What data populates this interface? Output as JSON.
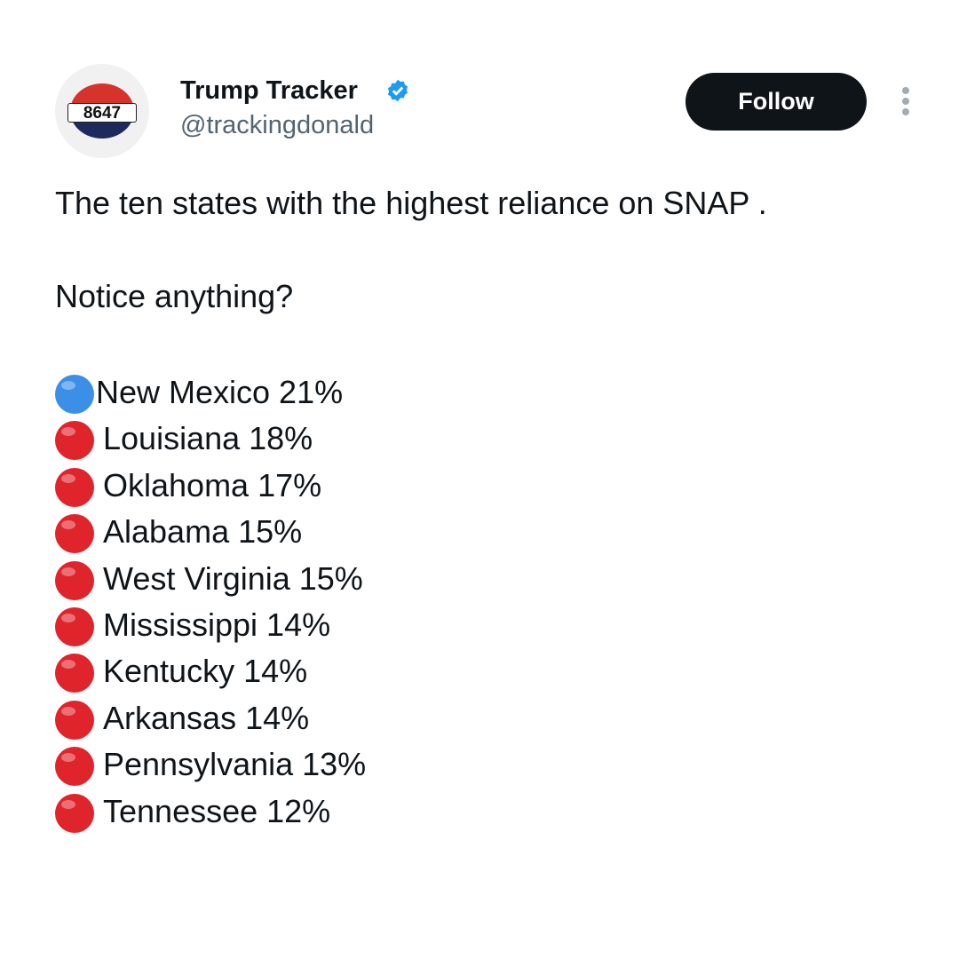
{
  "author": {
    "avatar_text": "8647",
    "name": "Trump Tracker",
    "handle": "@trackingdonald"
  },
  "follow_button": "Follow",
  "tweet": {
    "lines": [
      "The ten states with the highest reliance on SNAP .",
      "Notice anything?"
    ],
    "items": [
      {
        "marker_color": "#3b8fe6",
        "text": "New Mexico 21%"
      },
      {
        "marker_color": "#e0242b",
        "text": "Louisiana 18%"
      },
      {
        "marker_color": "#e0242b",
        "text": "Oklahoma 17%"
      },
      {
        "marker_color": "#e0242b",
        "text": "Alabama 15%"
      },
      {
        "marker_color": "#e0242b",
        "text": "West Virginia 15%"
      },
      {
        "marker_color": "#e0242b",
        "text": "Mississippi 14%"
      },
      {
        "marker_color": "#e0242b",
        "text": "Kentucky 14%"
      },
      {
        "marker_color": "#e0242b",
        "text": "Arkansas 14%"
      },
      {
        "marker_color": "#e0242b",
        "text": "Pennsylvania 13%"
      },
      {
        "marker_color": "#e0242b",
        "text": "Tennessee 12%"
      }
    ]
  }
}
